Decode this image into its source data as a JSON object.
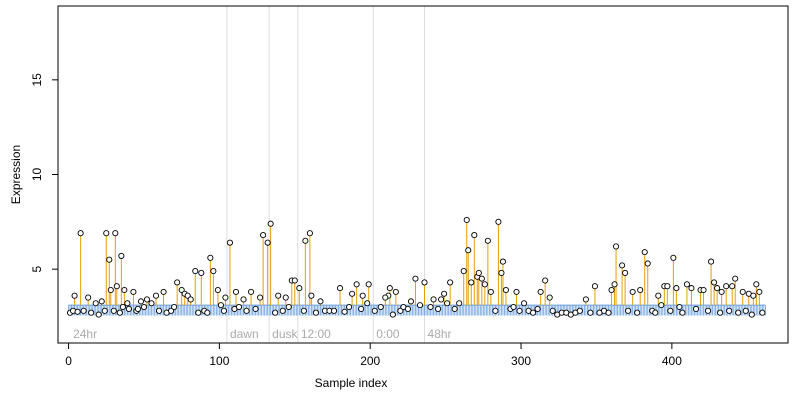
{
  "chart_data": {
    "type": "scatter",
    "title": "",
    "xlabel": "Sample index",
    "ylabel": "Expression",
    "xlim": [
      -7,
      477
    ],
    "ylim": [
      1.1,
      18.9
    ],
    "xticks": [
      0,
      100,
      200,
      300,
      400
    ],
    "yticks": [
      5,
      10,
      15
    ],
    "baseline": 3.1,
    "grid": false,
    "colors": {
      "stem": "#E69F00",
      "baseline_band": "#6A9FE0",
      "point_stroke": "#000000",
      "point_fill": "#FFFFFF",
      "separator": "#DDDDDD",
      "segment_label": "#AAAAAA",
      "axis": "#000000"
    },
    "separators": [
      105,
      133,
      152,
      202,
      236
    ],
    "segment_labels": [
      {
        "text": "24hr",
        "x": 3
      },
      {
        "text": "dawn",
        "x": 107
      },
      {
        "text": "dusk",
        "x": 135
      },
      {
        "text": "12:00",
        "x": 154
      },
      {
        "text": "0:00",
        "x": 204
      },
      {
        "text": "48hr",
        "x": 238
      }
    ],
    "peaks": [
      [
        4,
        3.6
      ],
      [
        8,
        6.9
      ],
      [
        13,
        3.5
      ],
      [
        18,
        3.2
      ],
      [
        22,
        3.3
      ],
      [
        25,
        6.9
      ],
      [
        27,
        5.5
      ],
      [
        28,
        3.9
      ],
      [
        31,
        6.9
      ],
      [
        32,
        4.1
      ],
      [
        35,
        5.7
      ],
      [
        37,
        3.9
      ],
      [
        43,
        3.8
      ],
      [
        48,
        3.3
      ],
      [
        52,
        3.4
      ],
      [
        58,
        3.6
      ],
      [
        63,
        3.8
      ],
      [
        72,
        4.3
      ],
      [
        75,
        3.9
      ],
      [
        77,
        3.7
      ],
      [
        79,
        3.6
      ],
      [
        81,
        3.4
      ],
      [
        84,
        4.9
      ],
      [
        88,
        4.8
      ],
      [
        94,
        5.6
      ],
      [
        96,
        4.9
      ],
      [
        99,
        3.9
      ],
      [
        104,
        3.5
      ],
      [
        107,
        6.4
      ],
      [
        111,
        3.8
      ],
      [
        116,
        3.4
      ],
      [
        121,
        3.8
      ],
      [
        127,
        3.5
      ],
      [
        129,
        6.8
      ],
      [
        132,
        6.4
      ],
      [
        134,
        7.4
      ],
      [
        139,
        3.6
      ],
      [
        144,
        3.5
      ],
      [
        148,
        4.4
      ],
      [
        150,
        4.4
      ],
      [
        153,
        4.0
      ],
      [
        157,
        6.5
      ],
      [
        160,
        6.9
      ],
      [
        161,
        3.6
      ],
      [
        167,
        3.3
      ],
      [
        180,
        4.0
      ],
      [
        188,
        3.7
      ],
      [
        191,
        4.2
      ],
      [
        195,
        3.6
      ],
      [
        199,
        4.2
      ],
      [
        210,
        3.5
      ],
      [
        213,
        4.0
      ],
      [
        217,
        3.8
      ],
      [
        227,
        3.3
      ],
      [
        230,
        4.5
      ],
      [
        236,
        4.3
      ],
      [
        242,
        3.4
      ],
      [
        249,
        3.7
      ],
      [
        253,
        4.3
      ],
      [
        262,
        4.9
      ],
      [
        264,
        7.6
      ],
      [
        265,
        6.0
      ],
      [
        267,
        4.3
      ],
      [
        269,
        6.8
      ],
      [
        271,
        4.6
      ],
      [
        272,
        4.8
      ],
      [
        274,
        4.5
      ],
      [
        276,
        4.2
      ],
      [
        278,
        6.5
      ],
      [
        280,
        3.8
      ],
      [
        285,
        7.5
      ],
      [
        287,
        4.8
      ],
      [
        288,
        5.4
      ],
      [
        290,
        3.9
      ],
      [
        297,
        3.8
      ],
      [
        302,
        3.2
      ],
      [
        313,
        3.8
      ],
      [
        316,
        4.4
      ],
      [
        319,
        3.5
      ],
      [
        343,
        3.4
      ],
      [
        349,
        4.1
      ],
      [
        360,
        3.9
      ],
      [
        362,
        4.2
      ],
      [
        363,
        6.2
      ],
      [
        367,
        5.2
      ],
      [
        369,
        4.8
      ],
      [
        374,
        3.8
      ],
      [
        379,
        3.9
      ],
      [
        382,
        5.9
      ],
      [
        384,
        5.3
      ],
      [
        391,
        3.6
      ],
      [
        395,
        4.1
      ],
      [
        397,
        4.1
      ],
      [
        401,
        5.6
      ],
      [
        403,
        4.0
      ],
      [
        410,
        4.2
      ],
      [
        413,
        4.0
      ],
      [
        419,
        3.9
      ],
      [
        421,
        3.9
      ],
      [
        426,
        5.4
      ],
      [
        428,
        4.3
      ],
      [
        430,
        4.0
      ],
      [
        433,
        3.8
      ],
      [
        436,
        4.1
      ],
      [
        440,
        4.1
      ],
      [
        442,
        4.5
      ],
      [
        447,
        3.8
      ],
      [
        451,
        3.7
      ],
      [
        454,
        3.6
      ],
      [
        456,
        4.2
      ],
      [
        458,
        3.8
      ]
    ],
    "low_points": [
      [
        1,
        2.7
      ],
      [
        3,
        2.8
      ],
      [
        6,
        2.75
      ],
      [
        10,
        2.8
      ],
      [
        15,
        2.7
      ],
      [
        20,
        2.6
      ],
      [
        24,
        2.8
      ],
      [
        30,
        2.8
      ],
      [
        34,
        2.7
      ],
      [
        36,
        3.0
      ],
      [
        39,
        3.2
      ],
      [
        40,
        2.9
      ],
      [
        45,
        2.8
      ],
      [
        46,
        2.9
      ],
      [
        50,
        3.0
      ],
      [
        55,
        3.2
      ],
      [
        60,
        2.8
      ],
      [
        65,
        2.7
      ],
      [
        68,
        2.8
      ],
      [
        70,
        3.0
      ],
      [
        86,
        2.7
      ],
      [
        90,
        2.8
      ],
      [
        92,
        2.7
      ],
      [
        101,
        3.1
      ],
      [
        103,
        2.8
      ],
      [
        110,
        2.9
      ],
      [
        113,
        3.0
      ],
      [
        118,
        2.8
      ],
      [
        124,
        2.9
      ],
      [
        137,
        2.7
      ],
      [
        142,
        2.8
      ],
      [
        146,
        3.0
      ],
      [
        156,
        2.8
      ],
      [
        164,
        2.7
      ],
      [
        170,
        2.8
      ],
      [
        173,
        2.8
      ],
      [
        176,
        2.8
      ],
      [
        183,
        2.75
      ],
      [
        186,
        3.0
      ],
      [
        194,
        2.9
      ],
      [
        198,
        3.2
      ],
      [
        203,
        2.8
      ],
      [
        207,
        3.0
      ],
      [
        212,
        3.6
      ],
      [
        215,
        2.6
      ],
      [
        220,
        2.8
      ],
      [
        222,
        3.0
      ],
      [
        225,
        2.9
      ],
      [
        233,
        3.1
      ],
      [
        240,
        3.0
      ],
      [
        245,
        2.9
      ],
      [
        247,
        3.4
      ],
      [
        251,
        3.2
      ],
      [
        256,
        2.9
      ],
      [
        259,
        3.2
      ],
      [
        283,
        2.8
      ],
      [
        293,
        2.9
      ],
      [
        295,
        3.0
      ],
      [
        299,
        2.8
      ],
      [
        305,
        2.8
      ],
      [
        308,
        2.7
      ],
      [
        311,
        2.9
      ],
      [
        321,
        2.8
      ],
      [
        324,
        2.6
      ],
      [
        327,
        2.7
      ],
      [
        330,
        2.7
      ],
      [
        333,
        2.6
      ],
      [
        336,
        2.7
      ],
      [
        339,
        2.8
      ],
      [
        346,
        2.7
      ],
      [
        352,
        2.7
      ],
      [
        355,
        2.8
      ],
      [
        358,
        2.7
      ],
      [
        371,
        2.8
      ],
      [
        377,
        2.7
      ],
      [
        387,
        2.8
      ],
      [
        389,
        2.7
      ],
      [
        393,
        3.1
      ],
      [
        399,
        2.8
      ],
      [
        405,
        3.0
      ],
      [
        407,
        2.7
      ],
      [
        416,
        2.9
      ],
      [
        424,
        2.8
      ],
      [
        432,
        2.7
      ],
      [
        438,
        2.8
      ],
      [
        444,
        2.7
      ],
      [
        449,
        2.8
      ],
      [
        453,
        2.6
      ],
      [
        460,
        2.7
      ]
    ]
  }
}
